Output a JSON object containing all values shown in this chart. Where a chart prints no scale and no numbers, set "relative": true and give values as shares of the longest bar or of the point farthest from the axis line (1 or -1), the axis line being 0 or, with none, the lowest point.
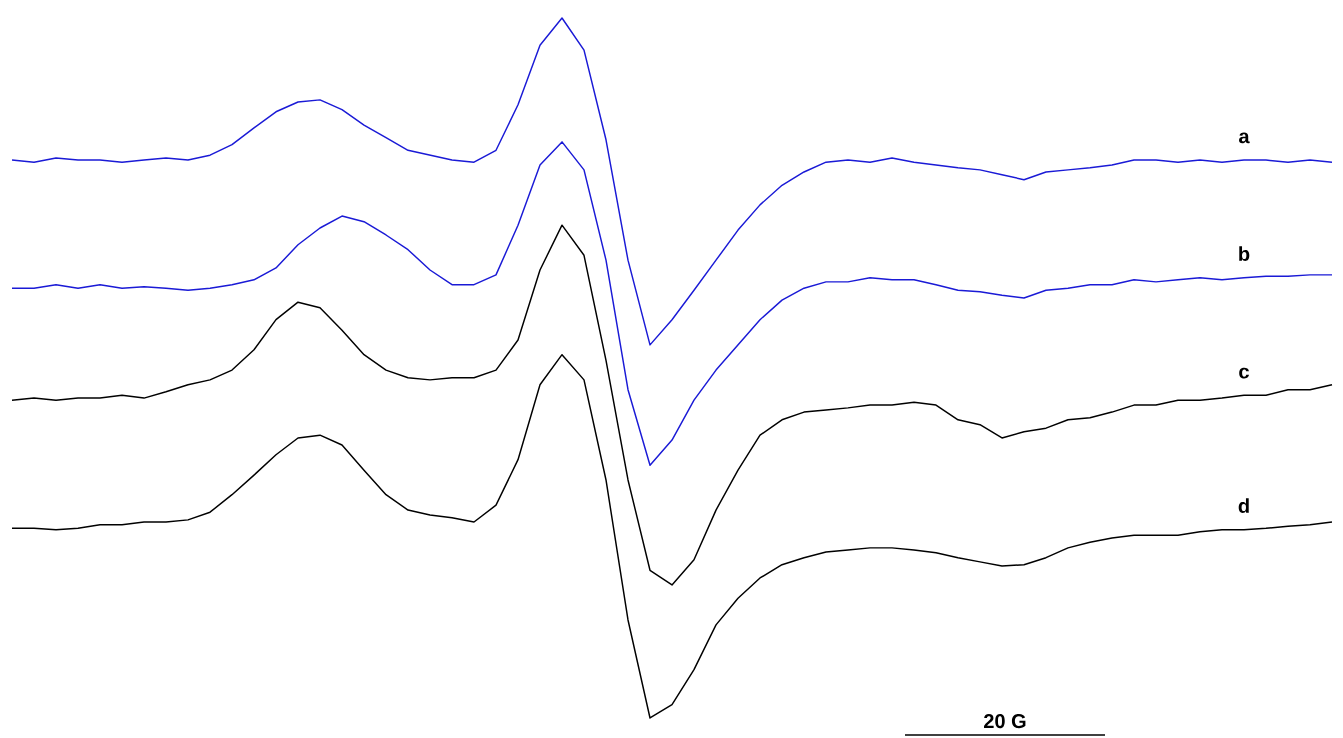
{
  "chart_data": {
    "type": "line",
    "relative": true,
    "categories": [
      null,
      null,
      null,
      null,
      null,
      null,
      null,
      null,
      null,
      null,
      null,
      null,
      null,
      null,
      null,
      null,
      null,
      null,
      null,
      null,
      null,
      null,
      null,
      null,
      null,
      null,
      null,
      null,
      null,
      null,
      null,
      null,
      null,
      null,
      null,
      null,
      null,
      null,
      null,
      null,
      null,
      null,
      null,
      null,
      null,
      null,
      null,
      null,
      null,
      null,
      null,
      null,
      null,
      null,
      null,
      null,
      null,
      null,
      null,
      null,
      null
    ],
    "series": [
      {
        "name": "a",
        "color": "#1a1ad6",
        "values": [
          0.797,
          0.794,
          0.8,
          0.797,
          0.797,
          0.794,
          0.797,
          0.8,
          0.797,
          0.804,
          0.819,
          0.843,
          0.866,
          0.88,
          0.883,
          0.869,
          0.847,
          0.829,
          0.811,
          0.804,
          0.797,
          0.794,
          0.811,
          0.876,
          0.961,
          1,
          0.954,
          0.826,
          0.654,
          0.533,
          0.569,
          0.611,
          0.654,
          0.697,
          0.733,
          0.761,
          0.78,
          0.794,
          0.797,
          0.794,
          0.8,
          0.794,
          0.79,
          0.786,
          0.783,
          0.776,
          0.769,
          0.78,
          0.783,
          0.786,
          0.79,
          0.797,
          0.797,
          0.794,
          0.797,
          0.794,
          0.797,
          0.797,
          0.794,
          0.797,
          0.794
        ]
      },
      {
        "name": "b",
        "color": "#1a1ad6",
        "values": [
          0.614,
          0.614,
          0.619,
          0.614,
          0.619,
          0.614,
          0.616,
          0.614,
          0.611,
          0.614,
          0.619,
          0.626,
          0.643,
          0.676,
          0.7,
          0.717,
          0.709,
          0.69,
          0.669,
          0.64,
          0.619,
          0.619,
          0.633,
          0.704,
          0.79,
          0.823,
          0.783,
          0.654,
          0.469,
          0.361,
          0.397,
          0.454,
          0.497,
          0.533,
          0.569,
          0.597,
          0.614,
          0.623,
          0.623,
          0.629,
          0.626,
          0.626,
          0.619,
          0.611,
          0.609,
          0.604,
          0.6,
          0.611,
          0.614,
          0.619,
          0.619,
          0.626,
          0.623,
          0.626,
          0.629,
          0.626,
          0.629,
          0.631,
          0.631,
          0.633,
          0.633
        ]
      },
      {
        "name": "c",
        "color": "#000000",
        "values": [
          0.454,
          0.457,
          0.454,
          0.457,
          0.457,
          0.461,
          0.457,
          0.466,
          0.476,
          0.483,
          0.497,
          0.526,
          0.569,
          0.594,
          0.586,
          0.554,
          0.519,
          0.497,
          0.486,
          0.483,
          0.486,
          0.486,
          0.497,
          0.54,
          0.64,
          0.704,
          0.661,
          0.511,
          0.34,
          0.211,
          0.19,
          0.226,
          0.297,
          0.354,
          0.404,
          0.426,
          0.437,
          0.44,
          0.443,
          0.447,
          0.447,
          0.451,
          0.447,
          0.426,
          0.419,
          0.4,
          0.409,
          0.414,
          0.426,
          0.429,
          0.437,
          0.447,
          0.447,
          0.454,
          0.454,
          0.457,
          0.461,
          0.461,
          0.469,
          0.469,
          0.476
        ]
      },
      {
        "name": "d",
        "color": "#000000",
        "values": [
          0.271,
          0.271,
          0.269,
          0.271,
          0.276,
          0.276,
          0.28,
          0.28,
          0.283,
          0.294,
          0.319,
          0.347,
          0.376,
          0.4,
          0.404,
          0.39,
          0.354,
          0.319,
          0.297,
          0.29,
          0.286,
          0.28,
          0.304,
          0.369,
          0.476,
          0.519,
          0.483,
          0.34,
          0.14,
          0,
          0.019,
          0.069,
          0.133,
          0.171,
          0.2,
          0.219,
          0.229,
          0.237,
          0.24,
          0.243,
          0.243,
          0.24,
          0.236,
          0.229,
          0.223,
          0.217,
          0.219,
          0.229,
          0.243,
          0.251,
          0.257,
          0.261,
          0.261,
          0.261,
          0.266,
          0.269,
          0.269,
          0.271,
          0.274,
          0.276,
          0.28
        ]
      }
    ],
    "annotations": [
      "20 G"
    ]
  }
}
